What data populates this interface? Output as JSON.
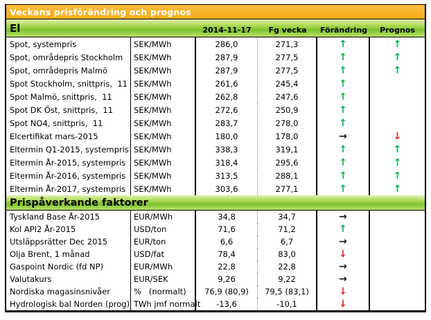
{
  "title_bar": {
    "label": "Veckans prisförändring och prognos"
  },
  "columns": {
    "date": "2014-11-17",
    "prev_week": "Fg vecka",
    "change": "Förändring",
    "forecast": "Prognos"
  },
  "arrows": {
    "up": "↑",
    "right": "→",
    "down": "↓"
  },
  "colors": {
    "title_bg": "#F5AC18",
    "section_bg": "#8CC63F",
    "arrow_up": "#00B45A",
    "arrow_down": "#FF1F1F",
    "arrow_right": "#111111"
  },
  "sections": [
    {
      "name": "El",
      "rows": [
        {
          "label": "Spot, systempris",
          "unit": "SEK/MWh",
          "current": "286,0",
          "prev": "271,3",
          "change": "up",
          "forecast": "up"
        },
        {
          "label": "Spot, områdepris Stockholm",
          "unit": "SEK/MWh",
          "current": "287,9",
          "prev": "277,5",
          "change": "up",
          "forecast": "up"
        },
        {
          "label": "Spot, områdepris Malmö",
          "unit": "SEK/MWh",
          "current": "287,9",
          "prev": "277,5",
          "change": "up",
          "forecast": "up"
        },
        {
          "label": "Spot Stockholm, snittpris,  11",
          "unit": "SEK/MWh",
          "current": "261,6",
          "prev": "245,4",
          "change": "up",
          "forecast": ""
        },
        {
          "label": "Spot Malmö, snittpris,  11",
          "unit": "SEK/MWh",
          "current": "262,8",
          "prev": "247,6",
          "change": "up",
          "forecast": ""
        },
        {
          "label": "Spot DK Öst, snittpris,  11",
          "unit": "SEK/MWh",
          "current": "272,6",
          "prev": "250,9",
          "change": "up",
          "forecast": ""
        },
        {
          "label": "Spot NO4, snittpris,  11",
          "unit": "SEK/MWh",
          "current": "283,7",
          "prev": "278,0",
          "change": "up",
          "forecast": ""
        },
        {
          "label": "Elcertifikat mars-2015",
          "unit": "SEK/MWh",
          "current": "180,0",
          "prev": "178,0",
          "change": "right",
          "forecast": "down"
        },
        {
          "label": "Eltermin Q1-2015, systempris",
          "unit": "SEK/MWh",
          "current": "338,3",
          "prev": "319,1",
          "change": "up",
          "forecast": "up"
        },
        {
          "label": "Eltermin År-2015, systempris",
          "unit": "SEK/MWh",
          "current": "318,4",
          "prev": "295,6",
          "change": "up",
          "forecast": "up"
        },
        {
          "label": "Eltermin År-2016, systempris",
          "unit": "SEK/MWh",
          "current": "313,5",
          "prev": "288,1",
          "change": "up",
          "forecast": "up"
        },
        {
          "label": "Eltermin År-2017, systempris",
          "unit": "SEK/MWh",
          "current": "303,6",
          "prev": "277,1",
          "change": "up",
          "forecast": "up"
        }
      ]
    },
    {
      "name": "Prispåverkande faktorer",
      "rows": [
        {
          "label": "Tyskland Base År-2015",
          "unit": "EUR/MWh",
          "current": "34,8",
          "prev": "34,7",
          "change": "right",
          "forecast": ""
        },
        {
          "label": "Kol API2 År-2015",
          "unit": "USD/ton",
          "current": "71,6",
          "prev": "71,2",
          "change": "up",
          "forecast": ""
        },
        {
          "label": "Utsläppsrätter Dec 2015",
          "unit": "EUR/ton",
          "current": "6,6",
          "prev": "6,7",
          "change": "right",
          "forecast": ""
        },
        {
          "label": "Olja Brent, 1 månad",
          "unit": "USD/fat",
          "current": "78,4",
          "prev": "83,0",
          "change": "down",
          "forecast": ""
        },
        {
          "label": "Gaspoint Nordic (fd NP)",
          "unit": "EUR/MWh",
          "current": "22,8",
          "prev": "22,8",
          "change": "right",
          "forecast": ""
        },
        {
          "label": "Valutakurs",
          "unit": "EUR/SEK",
          "current": "9,26",
          "prev": "9,22",
          "change": "right",
          "forecast": ""
        },
        {
          "label": "Nordiska magasinsnivåer",
          "unit": "%   (normalt)",
          "current": "76,9 (80,9)",
          "prev": "79,5 (83,1)",
          "change": "down",
          "forecast": ""
        },
        {
          "label": "Hydrologisk bal Norden (prog)",
          "unit": "TWh jmf normalt",
          "current": "-13,6",
          "prev": "-10,1",
          "change": "down",
          "forecast": ""
        }
      ]
    }
  ]
}
